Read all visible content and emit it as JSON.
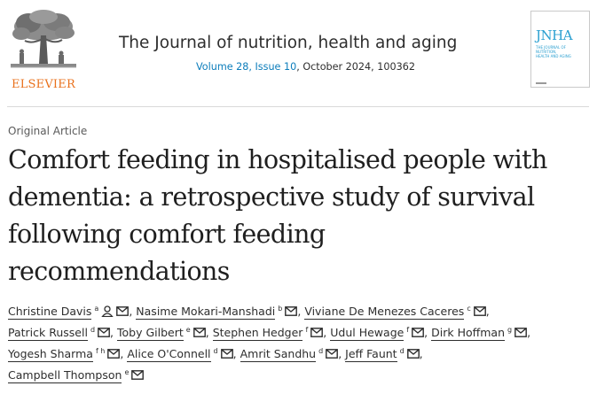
{
  "header": {
    "publisher": "ELSEVIER",
    "journal_title": "The Journal of nutrition, health and aging",
    "issue_link": "Volume 28, Issue 10",
    "issue_rest": ", October 2024, 100362",
    "cover": {
      "title": "JNHA",
      "subtitle": "The Journal of Nutrition, Health and Aging"
    },
    "colors": {
      "publisher": "#e9711c",
      "link": "#0c7dbb",
      "cover_accent": "#2a9fd0"
    }
  },
  "article": {
    "type": "Original Article",
    "title_lines": [
      "Comfort feeding in hospitalised people with",
      "dementia: a retrospective study of survival",
      "following comfort feeding",
      "recommendations"
    ]
  },
  "authors": [
    {
      "name": "Christine Davis",
      "sup": "a",
      "icons": [
        "person-icon",
        "mail-icon"
      ]
    },
    {
      "name": "Nasime Mokari-Manshadi",
      "sup": "b",
      "icons": [
        "mail-icon"
      ]
    },
    {
      "name": "Viviane De Menezes Caceres",
      "sup": "c",
      "icons": [
        "mail-icon"
      ]
    },
    {
      "name": "Patrick Russell",
      "sup": "d",
      "icons": [
        "mail-icon"
      ]
    },
    {
      "name": "Toby Gilbert",
      "sup": "e",
      "icons": [
        "mail-icon"
      ]
    },
    {
      "name": "Stephen Hedger",
      "sup": "f",
      "icons": [
        "mail-icon"
      ]
    },
    {
      "name": "Udul Hewage",
      "sup": "f",
      "icons": [
        "mail-icon"
      ]
    },
    {
      "name": "Dirk Hoffman",
      "sup": "g",
      "icons": [
        "mail-icon"
      ]
    },
    {
      "name": "Yogesh Sharma",
      "sup": "f h",
      "icons": [
        "mail-icon"
      ]
    },
    {
      "name": "Alice O'Connell",
      "sup": "d",
      "icons": [
        "mail-icon"
      ]
    },
    {
      "name": "Amrit Sandhu",
      "sup": "d",
      "icons": [
        "mail-icon"
      ]
    },
    {
      "name": "Jeff Faunt",
      "sup": "d",
      "icons": [
        "mail-icon"
      ]
    },
    {
      "name": "Campbell Thompson",
      "sup": "e",
      "icons": [
        "mail-icon"
      ]
    }
  ]
}
